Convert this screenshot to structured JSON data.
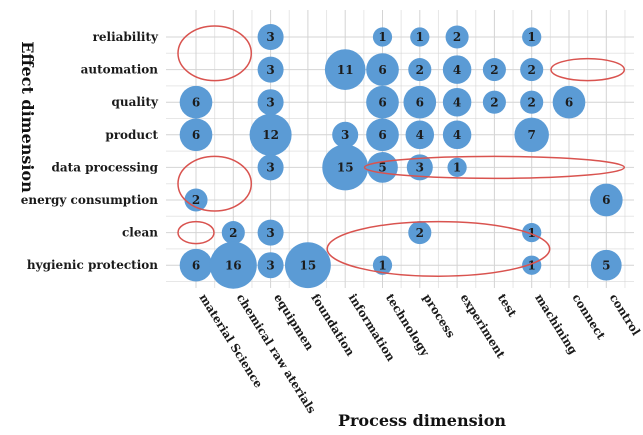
{
  "chart_data": {
    "type": "scatter",
    "subtype": "bubble",
    "xlabel": "Process dimension",
    "ylabel": "Effect dimension",
    "x_categories": [
      "material Science",
      "chemical raw aterials",
      "equipmen",
      "foundation",
      "information",
      "technology",
      "process",
      "experiment",
      "test",
      "machining",
      "connect",
      "control"
    ],
    "y_categories": [
      "reliability",
      "automation",
      "quality",
      "product",
      "data processing",
      "energy consumption",
      "clean",
      "hygienic protection"
    ],
    "grid": true,
    "bubble_color": "#5b9bd5",
    "highlight_color": "#d9534f",
    "points": [
      {
        "x": "equipmen",
        "y": "reliability",
        "value": 3
      },
      {
        "x": "technology",
        "y": "reliability",
        "value": 1
      },
      {
        "x": "process",
        "y": "reliability",
        "value": 1
      },
      {
        "x": "experiment",
        "y": "reliability",
        "value": 2
      },
      {
        "x": "machining",
        "y": "reliability",
        "value": 1
      },
      {
        "x": "equipmen",
        "y": "automation",
        "value": 3
      },
      {
        "x": "information",
        "y": "automation",
        "value": 11
      },
      {
        "x": "technology",
        "y": "automation",
        "value": 6
      },
      {
        "x": "process",
        "y": "automation",
        "value": 2
      },
      {
        "x": "experiment",
        "y": "automation",
        "value": 4
      },
      {
        "x": "test",
        "y": "automation",
        "value": 2
      },
      {
        "x": "machining",
        "y": "automation",
        "value": 2
      },
      {
        "x": "material Science",
        "y": "quality",
        "value": 6
      },
      {
        "x": "equipmen",
        "y": "quality",
        "value": 3
      },
      {
        "x": "technology",
        "y": "quality",
        "value": 6
      },
      {
        "x": "process",
        "y": "quality",
        "value": 6
      },
      {
        "x": "experiment",
        "y": "quality",
        "value": 4
      },
      {
        "x": "test",
        "y": "quality",
        "value": 2
      },
      {
        "x": "machining",
        "y": "quality",
        "value": 2
      },
      {
        "x": "connect",
        "y": "quality",
        "value": 6
      },
      {
        "x": "material Science",
        "y": "product",
        "value": 6
      },
      {
        "x": "equipmen",
        "y": "product",
        "value": 12
      },
      {
        "x": "information",
        "y": "product",
        "value": 3
      },
      {
        "x": "technology",
        "y": "product",
        "value": 6
      },
      {
        "x": "process",
        "y": "product",
        "value": 4
      },
      {
        "x": "experiment",
        "y": "product",
        "value": 4
      },
      {
        "x": "machining",
        "y": "product",
        "value": 7
      },
      {
        "x": "equipmen",
        "y": "data processing",
        "value": 3
      },
      {
        "x": "information",
        "y": "data processing",
        "value": 15
      },
      {
        "x": "technology",
        "y": "data processing",
        "value": 5
      },
      {
        "x": "process",
        "y": "data processing",
        "value": 3
      },
      {
        "x": "experiment",
        "y": "data processing",
        "value": 1
      },
      {
        "x": "material Science",
        "y": "energy consumption",
        "value": 2
      },
      {
        "x": "control",
        "y": "energy consumption",
        "value": 6
      },
      {
        "x": "chemical raw aterials",
        "y": "clean",
        "value": 2
      },
      {
        "x": "equipmen",
        "y": "clean",
        "value": 3
      },
      {
        "x": "process",
        "y": "clean",
        "value": 2
      },
      {
        "x": "machining",
        "y": "clean",
        "value": 1
      },
      {
        "x": "material Science",
        "y": "hygienic protection",
        "value": 6
      },
      {
        "x": "chemical raw aterials",
        "y": "hygienic protection",
        "value": 16
      },
      {
        "x": "equipmen",
        "y": "hygienic protection",
        "value": 3
      },
      {
        "x": "foundation",
        "y": "hygienic protection",
        "value": 15
      },
      {
        "x": "technology",
        "y": "hygienic protection",
        "value": 1
      },
      {
        "x": "machining",
        "y": "hygienic protection",
        "value": 1
      },
      {
        "x": "control",
        "y": "hygienic protection",
        "value": 5
      }
    ],
    "highlight_ellipses": [
      {
        "x_from": "material Science",
        "x_to": "chemical raw aterials",
        "y_from": "reliability",
        "y_to": "automation"
      },
      {
        "x_from": "connect",
        "x_to": "control",
        "y_from": "automation",
        "y_to": "automation"
      },
      {
        "x_from": "technology",
        "x_to": "control",
        "y_from": "data processing",
        "y_to": "data processing"
      },
      {
        "x_from": "material Science",
        "x_to": "chemical raw aterials",
        "y_from": "data processing",
        "y_to": "energy consumption"
      },
      {
        "x_from": "material Science",
        "x_to": "material Science",
        "y_from": "clean",
        "y_to": "clean"
      },
      {
        "x_from": "information",
        "x_to": "machining",
        "y_from": "clean",
        "y_to": "hygienic protection"
      }
    ]
  }
}
